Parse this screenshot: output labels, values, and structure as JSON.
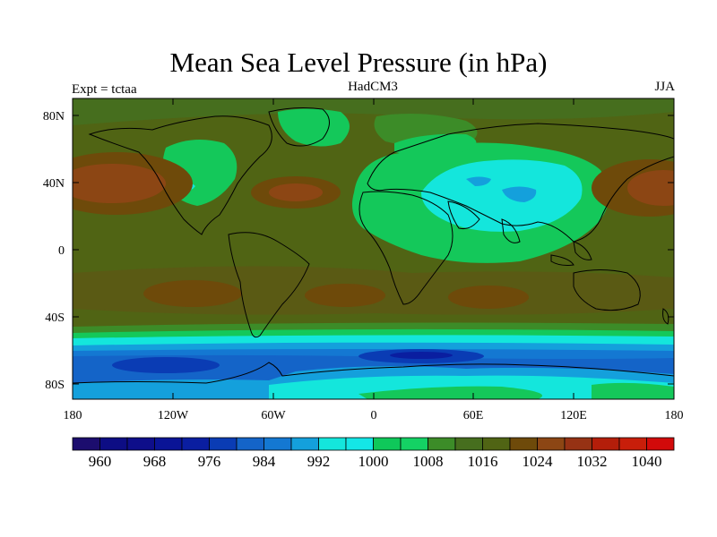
{
  "title": "Mean Sea Level Pressure (in hPa)",
  "subtitle_left": "Expt = tctaa",
  "subtitle_center": "HadCM3",
  "subtitle_right": "JJA",
  "lat_ticks": [
    "80N",
    "40N",
    "0",
    "40S",
    "80S"
  ],
  "lon_ticks": [
    "180",
    "120W",
    "60W",
    "0",
    "60E",
    "120E",
    "180"
  ],
  "colorbar_labels": [
    "960",
    "968",
    "976",
    "984",
    "992",
    "1000",
    "1008",
    "1016",
    "1024",
    "1032",
    "1040"
  ],
  "colorbar_colors": [
    "#1c0d6e",
    "#0d0d84",
    "#0e0e8a",
    "#0a1496",
    "#0a1ea0",
    "#0a3cb4",
    "#1464c8",
    "#1478d2",
    "#14a0dc",
    "#14e6dc",
    "#14e6e6",
    "#0fc85a",
    "#14d264",
    "#3c8c28",
    "#466e1e",
    "#506414",
    "#6e4a0a",
    "#8c4614",
    "#963214",
    "#b41e0a",
    "#c81e0a",
    "#d20a0a"
  ]
}
